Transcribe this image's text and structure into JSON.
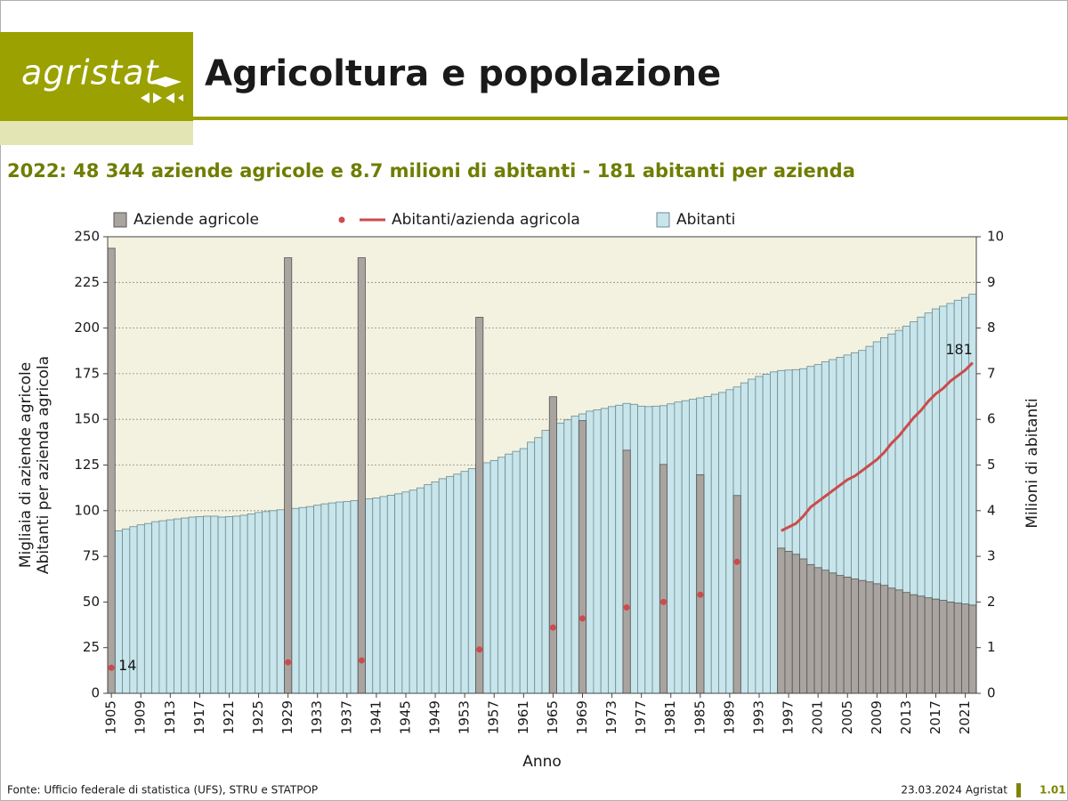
{
  "header": {
    "logo": "agristat",
    "title": "Agricoltura e popolazione"
  },
  "subtitle": "2022: 48 344 aziende agricole e 8.7 milioni di abitanti - 181 abitanti per azienda",
  "footer": {
    "source": "Fonte: Ufficio federale di statistica (UFS), STRU e STATPOP",
    "date": "23.03.2024 Agristat",
    "page": "1.01"
  },
  "chart_data": {
    "type": "bar",
    "xlabel": "Anno",
    "ylabel": [
      "Migliaia di aziende agricole",
      "Abitanti per azienda agricola"
    ],
    "y2label": "Milioni di abitanti",
    "categories": [
      "1905",
      null,
      null,
      null,
      "1909",
      null,
      null,
      null,
      "1913",
      null,
      null,
      null,
      "1917",
      null,
      null,
      null,
      "1921",
      null,
      null,
      null,
      "1925",
      null,
      null,
      null,
      "1929",
      null,
      null,
      null,
      "1933",
      null,
      null,
      null,
      "1937",
      null,
      null,
      null,
      "1941",
      null,
      null,
      null,
      "1945",
      null,
      null,
      null,
      "1949",
      null,
      null,
      null,
      "1953",
      null,
      null,
      null,
      "1957",
      null,
      null,
      null,
      "1961",
      null,
      null,
      null,
      "1965",
      null,
      null,
      null,
      "1969",
      null,
      null,
      null,
      "1973",
      null,
      null,
      null,
      "1977",
      null,
      null,
      null,
      "1981",
      null,
      null,
      null,
      "1985",
      null,
      null,
      null,
      "1989",
      null,
      null,
      null,
      "1993",
      null,
      null,
      null,
      "1997",
      null,
      null,
      null,
      "2001",
      null,
      null,
      null,
      "2005",
      null,
      null,
      null,
      "2009",
      null,
      null,
      null,
      "2013",
      null,
      null,
      null,
      "2017",
      null,
      null,
      null,
      "2021",
      null
    ],
    "ylim": [
      0,
      250
    ],
    "yticks": [
      0,
      25,
      50,
      75,
      100,
      125,
      150,
      175,
      200,
      225,
      250
    ],
    "y2lim": [
      0,
      10
    ],
    "y2ticks": [
      0,
      1,
      2,
      3,
      4,
      5,
      6,
      7,
      8,
      9,
      10
    ],
    "grid": true,
    "series": [
      {
        "name": "Aziende agricole",
        "type": "bar",
        "color": "#a9a4a0",
        "values": [
          243.7,
          null,
          null,
          null,
          null,
          null,
          null,
          null,
          null,
          null,
          null,
          null,
          null,
          null,
          null,
          null,
          null,
          null,
          null,
          null,
          null,
          null,
          null,
          null,
          238.5,
          null,
          null,
          null,
          null,
          null,
          null,
          null,
          null,
          null,
          238.5,
          null,
          null,
          null,
          null,
          null,
          null,
          null,
          null,
          null,
          null,
          null,
          null,
          null,
          null,
          null,
          205.9,
          null,
          null,
          null,
          null,
          null,
          null,
          null,
          null,
          null,
          162.4,
          null,
          null,
          null,
          149.3,
          null,
          null,
          null,
          null,
          null,
          133.1,
          null,
          null,
          null,
          null,
          125.3,
          null,
          null,
          null,
          null,
          119.7,
          null,
          null,
          null,
          null,
          108.3,
          null,
          null,
          null,
          null,
          null,
          79.5,
          77.7,
          76.1,
          73.6,
          70.5,
          68.8,
          67.4,
          65.9,
          64.5,
          63.6,
          62.6,
          61.8,
          61.0,
          60.0,
          59.1,
          57.6,
          56.6,
          55.2,
          54.0,
          53.2,
          52.3,
          51.6,
          50.9,
          50.0,
          49.4,
          48.9,
          48.3
        ]
      },
      {
        "name": "Abitanti/azienda agricola",
        "type": "line",
        "color": "#cc4b4b",
        "values": [
          14,
          null,
          null,
          null,
          null,
          null,
          null,
          null,
          null,
          null,
          null,
          null,
          null,
          null,
          null,
          null,
          null,
          null,
          null,
          null,
          null,
          null,
          null,
          null,
          17,
          null,
          null,
          null,
          null,
          null,
          null,
          null,
          null,
          null,
          18,
          null,
          null,
          null,
          null,
          null,
          null,
          null,
          null,
          null,
          null,
          null,
          null,
          null,
          null,
          null,
          24,
          null,
          null,
          null,
          null,
          null,
          null,
          null,
          null,
          null,
          36,
          null,
          null,
          null,
          41,
          null,
          null,
          null,
          null,
          null,
          47,
          null,
          null,
          null,
          null,
          50,
          null,
          null,
          null,
          null,
          54,
          null,
          null,
          null,
          null,
          72,
          null,
          null,
          null,
          null,
          null,
          89,
          91,
          93,
          97,
          102,
          105,
          108,
          111,
          114,
          117,
          119,
          122,
          125,
          128,
          132,
          137,
          141,
          146,
          151,
          155,
          160,
          164,
          167,
          171,
          174,
          177,
          181
        ]
      },
      {
        "name": "Abitanti",
        "type": "bar",
        "axis": "y2",
        "color": "#c7e5ea",
        "values": [
          3.53,
          3.56,
          3.6,
          3.65,
          3.69,
          3.72,
          3.76,
          3.78,
          3.8,
          3.82,
          3.84,
          3.86,
          3.87,
          3.88,
          3.88,
          3.86,
          3.87,
          3.88,
          3.9,
          3.93,
          3.96,
          3.98,
          4.0,
          4.02,
          4.04,
          4.05,
          4.07,
          4.09,
          4.12,
          4.15,
          4.17,
          4.19,
          4.2,
          4.22,
          4.24,
          4.26,
          4.28,
          4.31,
          4.34,
          4.37,
          4.41,
          4.45,
          4.5,
          4.57,
          4.63,
          4.7,
          4.75,
          4.8,
          4.86,
          4.92,
          4.98,
          5.05,
          5.1,
          5.17,
          5.24,
          5.3,
          5.36,
          5.5,
          5.6,
          5.76,
          5.86,
          5.92,
          5.99,
          6.07,
          6.12,
          6.18,
          6.21,
          6.24,
          6.28,
          6.31,
          6.35,
          6.33,
          6.29,
          6.28,
          6.29,
          6.3,
          6.34,
          6.38,
          6.41,
          6.44,
          6.47,
          6.5,
          6.55,
          6.59,
          6.65,
          6.71,
          6.8,
          6.88,
          6.94,
          6.99,
          7.04,
          7.07,
          7.08,
          7.09,
          7.11,
          7.16,
          7.2,
          7.26,
          7.31,
          7.36,
          7.41,
          7.46,
          7.51,
          7.6,
          7.7,
          7.79,
          7.87,
          7.95,
          8.04,
          8.14,
          8.24,
          8.33,
          8.42,
          8.48,
          8.54,
          8.61,
          8.67,
          8.74
        ]
      }
    ]
  }
}
